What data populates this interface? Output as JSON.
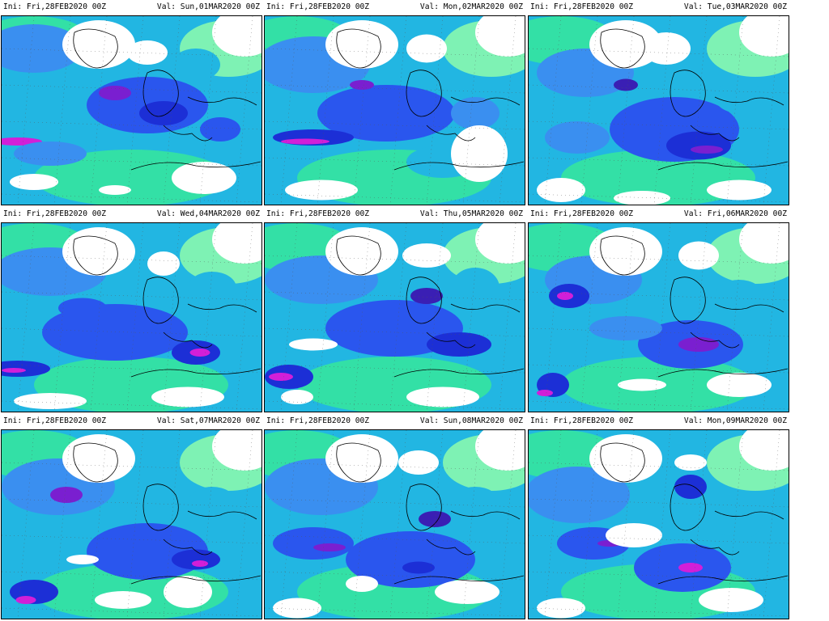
{
  "panels": [
    {
      "ini": "Ini: Fri,28FEB2020 00Z",
      "val": "Val: Sun,01MAR2020 00Z"
    },
    {
      "ini": "Ini: Fri,28FEB2020 00Z",
      "val": "Val: Mon,02MAR2020 00Z"
    },
    {
      "ini": "Ini: Fri,28FEB2020 00Z",
      "val": "Val: Tue,03MAR2020 00Z"
    },
    {
      "ini": "Ini: Fri,28FEB2020 00Z",
      "val": "Val: Wed,04MAR2020 00Z"
    },
    {
      "ini": "Ini: Fri,28FEB2020 00Z",
      "val": "Val: Thu,05MAR2020 00Z"
    },
    {
      "ini": "Ini: Fri,28FEB2020 00Z",
      "val": "Val: Fri,06MAR2020 00Z"
    },
    {
      "ini": "Ini: Fri,28FEB2020 00Z",
      "val": "Val: Sat,07MAR2020 00Z"
    },
    {
      "ini": "Ini: Fri,28FEB2020 00Z",
      "val": "Val: Sun,08MAR2020 00Z"
    },
    {
      "ini": "Ini: Fri,28FEB2020 00Z",
      "val": "Val: Mon,09MAR2020 00Z"
    }
  ],
  "colors": {
    "land_white": "#ffffff",
    "pale_green": "#7ef2b4",
    "green": "#33e0a6",
    "teal": "#22b6e2",
    "light_blue": "#3a8ff0",
    "blue": "#2a56ee",
    "deep_blue": "#1c2fd6",
    "indigo": "#3a1fb4",
    "purple": "#7a1fd0",
    "magenta": "#d21fd8",
    "coast_black": "#000000"
  }
}
